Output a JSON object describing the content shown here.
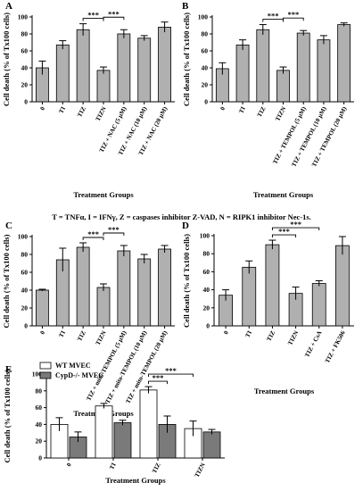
{
  "caption": "T = TNFα, I = IFNγ, Z = caspases inhibitor Z-VAD, N = RIPK1 inhibitor Nec-1s.",
  "colors": {
    "bar": "#b0b0b0",
    "bar_dark": "#7a7a7a",
    "bar_light": "#ffffff",
    "stroke": "#000000"
  },
  "chart_data": [
    {
      "letter": "A",
      "type": "bar",
      "ylabel": "Cell death (% of Tx100 cells)",
      "xlabel": "Treatment Groups",
      "ylim": [
        0,
        100
      ],
      "yticks": [
        0,
        20,
        40,
        60,
        80,
        100
      ],
      "categories": [
        "0",
        "TI",
        "TIZ",
        "TIZN",
        "TIZ + NAC (5 μM)",
        "TIZ + NAC (10 μM)",
        "TIZ + NAC (20 μM)"
      ],
      "values": [
        40,
        67,
        85,
        37,
        80,
        75,
        88
      ],
      "errors": [
        8,
        5,
        7,
        4,
        5,
        3,
        6
      ],
      "significance": [
        {
          "from": 2,
          "to": 3,
          "label": "***"
        },
        {
          "from": 3,
          "to": 4,
          "label": "***"
        }
      ]
    },
    {
      "letter": "B",
      "type": "bar",
      "ylabel": "Cell death (% of Tx100 cells)",
      "xlabel": "Treatment Groups",
      "ylim": [
        0,
        100
      ],
      "yticks": [
        0,
        20,
        40,
        60,
        80,
        100
      ],
      "categories": [
        "0",
        "TI",
        "TIZ",
        "TIZN",
        "TIZ + TEMPOL (5 μM)",
        "TIZ + TEMPOL (10 μM)",
        "TIZ + TEMPOL (20 μM)"
      ],
      "values": [
        39,
        67,
        85,
        37,
        81,
        73,
        91
      ],
      "errors": [
        7,
        6,
        6,
        4,
        3,
        5,
        2
      ],
      "significance": [
        {
          "from": 2,
          "to": 3,
          "label": "***"
        },
        {
          "from": 3,
          "to": 4,
          "label": "***"
        }
      ]
    },
    {
      "letter": "C",
      "type": "bar",
      "ylabel": "Cell death (% of Tx100 cells)",
      "xlabel": "Treatment Groups",
      "ylim": [
        0,
        100
      ],
      "yticks": [
        0,
        20,
        40,
        60,
        80,
        100
      ],
      "categories": [
        "0",
        "TI",
        "TIZ",
        "TIZN",
        "TIZ + mito-TEMPOL (5 μM)",
        "TIZ + mito-TEMPOL (10 μM)",
        "TIZ + mito-TEMPOL (20 μM)"
      ],
      "values": [
        40,
        74,
        88,
        43,
        84,
        75,
        86
      ],
      "errors": [
        1,
        13,
        5,
        4,
        6,
        5,
        4
      ],
      "significance": [
        {
          "from": 2,
          "to": 3,
          "label": "***"
        },
        {
          "from": 3,
          "to": 4,
          "label": "***"
        }
      ]
    },
    {
      "letter": "D",
      "type": "bar",
      "ylabel": "Cell death (% of Tx100 cells)",
      "xlabel": "Treatment Groups",
      "ylim": [
        0,
        100
      ],
      "yticks": [
        0,
        20,
        40,
        60,
        80,
        100
      ],
      "categories": [
        "0",
        "TI",
        "TIZ",
        "TIZN",
        "TIZ + CsA",
        "TIZ + FK506"
      ],
      "values": [
        34,
        65,
        90,
        36,
        47,
        89
      ],
      "errors": [
        6,
        7,
        5,
        7,
        3,
        10
      ],
      "significance": [
        {
          "from": 2,
          "to": 3,
          "label": "***"
        },
        {
          "from": 2,
          "to": 4,
          "label": "***"
        }
      ]
    },
    {
      "letter": "E",
      "type": "bar",
      "ylabel": "Cell death (% of Tx100 cells)",
      "xlabel": "Treatment Groups",
      "ylim": [
        0,
        100
      ],
      "yticks": [
        0,
        20,
        40,
        60,
        80,
        100
      ],
      "legend_position": "top-left",
      "categories": [
        "0",
        "TI",
        "TIZ",
        "TIZN"
      ],
      "series": [
        {
          "name": "WT MVEC",
          "values": [
            40,
            62,
            81,
            35
          ],
          "errors": [
            8,
            3,
            4,
            9
          ]
        },
        {
          "name": "CypD-/- MVEC",
          "values": [
            25,
            42,
            40,
            31
          ],
          "errors": [
            6,
            3,
            10,
            3
          ]
        }
      ],
      "significance": [
        {
          "from_cat": 2,
          "from_series": 0,
          "to_cat": 2,
          "to_series": 1,
          "label": "***"
        },
        {
          "from_cat": 2,
          "from_series": 0,
          "to_cat": 3,
          "to_series": 0,
          "label": "***"
        }
      ]
    }
  ]
}
